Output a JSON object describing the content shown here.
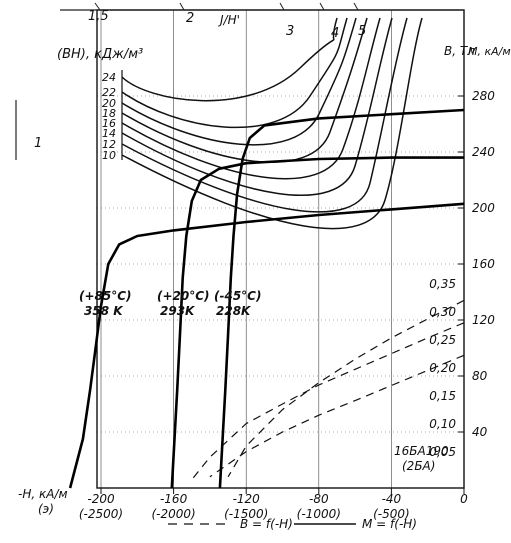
{
  "chart_data": {
    "type": "line",
    "title": "",
    "xlabel": "-H, кА/м",
    "x_axis_note": "(э)",
    "x_ticks": [
      {
        "value": -200,
        "label": "-200",
        "sub": "(-2500)"
      },
      {
        "value": -160,
        "label": "-160",
        "sub": "(-2000)"
      },
      {
        "value": -120,
        "label": "-120",
        "sub": "(-1500)"
      },
      {
        "value": -80,
        "label": "-80",
        "sub": "(-1000)"
      },
      {
        "value": -40,
        "label": "-40",
        "sub": "(-500)"
      },
      {
        "value": 0,
        "label": "0",
        "sub": ""
      }
    ],
    "xlim": [
      -225,
      0
    ],
    "y_left_label": "(BH), кДж/м³",
    "y_left_ticks": [
      10,
      12,
      14,
      16,
      18,
      20,
      22,
      24
    ],
    "y_left_tick_labels": [
      "10",
      "12",
      "14",
      "16",
      "18",
      "20",
      "22",
      "24"
    ],
    "y_right_label_B": "B, Тл",
    "y_right_ticks_B": [
      0.05,
      0.1,
      0.15,
      0.2,
      0.25,
      0.3,
      0.35
    ],
    "y_right_tick_labels_B": [
      "0,05",
      "0,10",
      "0,15",
      "0,20",
      "0,25",
      "0,30",
      "0,35"
    ],
    "y_right_label_M": "M, кА/м",
    "y_right_ticks_M": [
      40,
      80,
      120,
      160,
      200,
      240,
      280
    ],
    "y_right_tick_labels_M": [
      "40",
      "80",
      "120",
      "160",
      "200",
      "240",
      "280"
    ],
    "ylim_M": [
      0,
      300
    ],
    "top_axis_label": "J/H'",
    "top_axis_ticks": [
      "1,5",
      "2",
      "3",
      "4",
      "5"
    ],
    "side_label": "1",
    "legend": [
      {
        "label": "B = f(-H)",
        "style": "dashed"
      },
      {
        "label": "M = f(-H)",
        "style": "solid"
      }
    ],
    "sample_label": "16БА190",
    "sample_sublabel": "(2БА)",
    "temperature_labels": [
      {
        "celsius": "(+85°C)",
        "kelvin": "358 K"
      },
      {
        "celsius": "(+20°C)",
        "kelvin": "293K"
      },
      {
        "celsius": "(-45°C)",
        "kelvin": "228K"
      }
    ],
    "series": [
      {
        "name": "M = f(-H)",
        "temperature": "358 K",
        "x": [
          0,
          -40,
          -80,
          -120,
          -160,
          -180,
          -190,
          -196,
          -200,
          -203,
          -206,
          -210,
          -217
        ],
        "y": [
          203,
          199,
          195,
          190,
          184,
          180,
          174,
          160,
          130,
          100,
          70,
          35,
          0
        ]
      },
      {
        "name": "M = f(-H)",
        "temperature": "293 K",
        "x": [
          0,
          -40,
          -80,
          -120,
          -135,
          -145,
          -150,
          -153,
          -155,
          -156.5,
          -158,
          -159.5,
          -161
        ],
        "y": [
          236,
          236,
          235,
          232,
          228,
          220,
          205,
          180,
          150,
          110,
          70,
          35,
          0
        ]
      },
      {
        "name": "M = f(-H)",
        "temperature": "228 K",
        "x": [
          0,
          -40,
          -80,
          -110,
          -118,
          -122,
          -125,
          -127,
          -128.5,
          -130,
          -131.5,
          -133,
          -134.5
        ],
        "y": [
          270,
          267,
          264,
          259,
          250,
          235,
          210,
          180,
          150,
          110,
          70,
          35,
          0
        ]
      },
      {
        "name": "B = f(-H)",
        "temperature": "358 K",
        "x": [
          0,
          -20,
          -40,
          -60,
          -80,
          -100,
          -120,
          -140
        ],
        "y": [
          0.237,
          0.21,
          0.183,
          0.156,
          0.13,
          0.1,
          0.065,
          0.02
        ]
      },
      {
        "name": "B = f(-H)",
        "temperature": "293 K",
        "x": [
          0,
          -20,
          -40,
          -60,
          -80,
          -100,
          -120,
          -140,
          -150
        ],
        "y": [
          0.295,
          0.268,
          0.24,
          0.212,
          0.184,
          0.15,
          0.115,
          0.055,
          0.015
        ]
      },
      {
        "name": "B = f(-H)",
        "temperature": "228 K",
        "x": [
          0,
          -20,
          -40,
          -60,
          -80,
          -100,
          -120,
          -130
        ],
        "y": [
          0.335,
          0.302,
          0.268,
          0.23,
          0.188,
          0.14,
          0.075,
          0.02
        ]
      }
    ],
    "bh_contours": [
      10,
      12,
      14,
      16,
      18,
      20,
      22,
      24
    ],
    "grid": true,
    "legend_position": "bottom"
  }
}
